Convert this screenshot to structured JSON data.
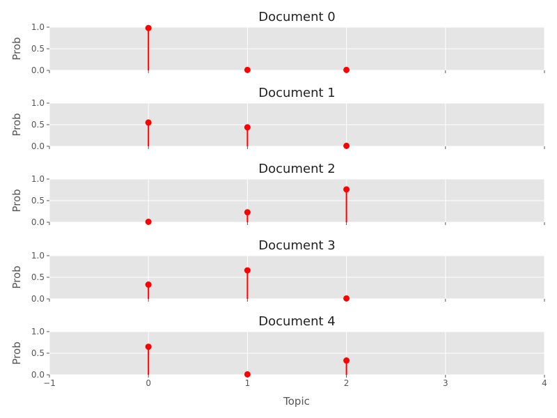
{
  "chart_data": {
    "type": "stem",
    "shared_x": true,
    "xlabel": "Topic",
    "xlim": [
      -1,
      4
    ],
    "xticks": [
      "−1",
      "0",
      "1",
      "2",
      "3",
      "4"
    ],
    "ylim": [
      0,
      1
    ],
    "yticks": [
      "0.0",
      "0.5",
      "1.0"
    ],
    "grid": true,
    "style": {
      "background": "#e5e5e5",
      "grid_color": "#ffffff",
      "marker_color": "#ff0000"
    },
    "subplots": [
      {
        "title": "Document 0",
        "ylabel": "Prob",
        "x": [
          0,
          1,
          2
        ],
        "y": [
          0.98,
          0.01,
          0.01
        ]
      },
      {
        "title": "Document 1",
        "ylabel": "Prob",
        "x": [
          0,
          1,
          2
        ],
        "y": [
          0.55,
          0.44,
          0.01
        ]
      },
      {
        "title": "Document 2",
        "ylabel": "Prob",
        "x": [
          0,
          1,
          2
        ],
        "y": [
          0.01,
          0.23,
          0.76
        ]
      },
      {
        "title": "Document 3",
        "ylabel": "Prob",
        "x": [
          0,
          1,
          2
        ],
        "y": [
          0.33,
          0.66,
          0.01
        ]
      },
      {
        "title": "Document 4",
        "ylabel": "Prob",
        "x": [
          0,
          1,
          2
        ],
        "y": [
          0.65,
          0.01,
          0.33
        ]
      }
    ]
  }
}
